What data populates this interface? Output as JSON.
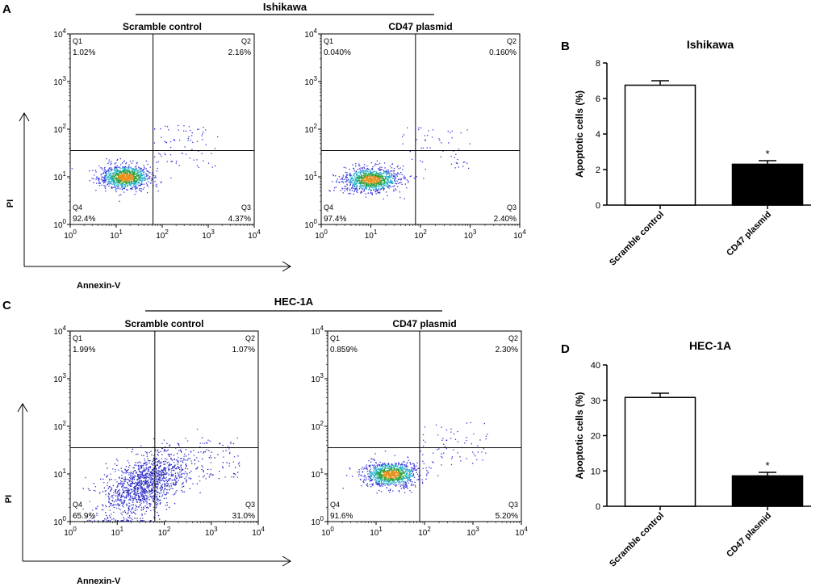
{
  "figure": {
    "panel_labels": {
      "A": "A",
      "B": "B",
      "C": "C",
      "D": "D"
    },
    "axis_titles": {
      "y": "PI",
      "x": "Annexin-V"
    },
    "tick_labels": {
      "decades": [
        "0",
        "1",
        "2",
        "3",
        "4"
      ],
      "base": "10"
    },
    "quadrant_names": [
      "Q1",
      "Q2",
      "Q3",
      "Q4"
    ]
  },
  "chart_data": [
    {
      "type": "scatter",
      "panel": "A",
      "group_title": "Ishikawa",
      "plots": [
        {
          "title": "Scramble control",
          "quadrants": {
            "Q1": "1.02%",
            "Q2": "2.16%",
            "Q3": "4.37%",
            "Q4": "92.4%"
          },
          "gates": {
            "x_log10": 1.8,
            "y_log10": 1.55
          },
          "cluster": {
            "x_log10": 1.2,
            "y_log10": 1.0
          }
        },
        {
          "title": "CD47 plasmid",
          "quadrants": {
            "Q1": "0.040%",
            "Q2": "0.160%",
            "Q3": "2.40%",
            "Q4": "97.4%"
          },
          "gates": {
            "x_log10": 1.9,
            "y_log10": 1.55
          },
          "cluster": {
            "x_log10": 1.0,
            "y_log10": 0.95
          }
        }
      ],
      "xlabel": "Annexin-V",
      "ylabel": "PI",
      "xlim_log10": [
        0,
        4
      ],
      "ylim_log10": [
        0,
        4
      ]
    },
    {
      "type": "bar",
      "panel": "B",
      "title": "Ishikawa",
      "categories": [
        "Scramble control",
        "CD47 plasmid"
      ],
      "values": [
        6.75,
        2.3
      ],
      "errors": [
        0.25,
        0.2
      ],
      "significance": [
        "",
        "*"
      ],
      "ylabel": "Apoptotic cells (%)",
      "ylim": [
        0,
        8
      ],
      "yticks": [
        0,
        2,
        4,
        6,
        8
      ]
    },
    {
      "type": "scatter",
      "panel": "C",
      "group_title": "HEC-1A",
      "plots": [
        {
          "title": "Scramble control",
          "quadrants": {
            "Q1": "1.99%",
            "Q2": "1.07%",
            "Q3": "31.0%",
            "Q4": "65.9%"
          },
          "gates": {
            "x_log10": 1.8,
            "y_log10": 1.55
          },
          "cluster": {
            "x_log10": 1.6,
            "y_log10": 0.7
          }
        },
        {
          "title": "CD47 plasmid",
          "quadrants": {
            "Q1": "0.859%",
            "Q2": "2.30%",
            "Q3": "5.20%",
            "Q4": "91.6%"
          },
          "gates": {
            "x_log10": 1.9,
            "y_log10": 1.55
          },
          "cluster": {
            "x_log10": 1.3,
            "y_log10": 1.0
          }
        }
      ],
      "xlabel": "Annexin-V",
      "ylabel": "PI",
      "xlim_log10": [
        0,
        4
      ],
      "ylim_log10": [
        0,
        4
      ]
    },
    {
      "type": "bar",
      "panel": "D",
      "title": "HEC-1A",
      "categories": [
        "Scramble control",
        "CD47 plasmid"
      ],
      "values": [
        30.8,
        8.6
      ],
      "errors": [
        1.2,
        1.0
      ],
      "significance": [
        "",
        "*"
      ],
      "ylabel": "Apoptotic cells (%)",
      "ylim": [
        0,
        40
      ],
      "yticks": [
        0,
        10,
        20,
        30,
        40
      ]
    }
  ]
}
